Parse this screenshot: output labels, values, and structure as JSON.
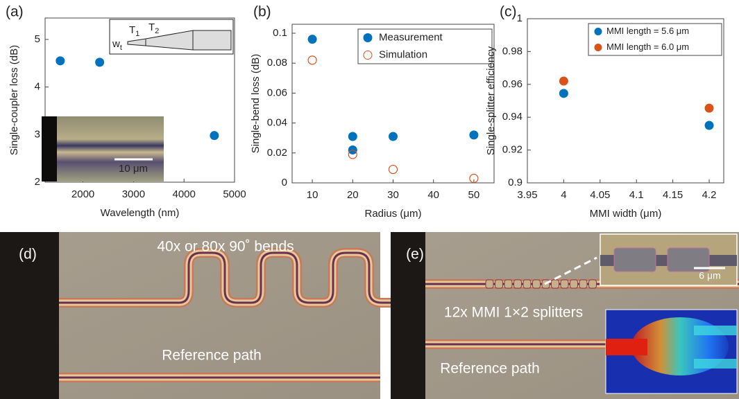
{
  "chart_data": [
    {
      "type": "scatter",
      "label": "(a)",
      "xlabel": "Wavelength (nm)",
      "ylabel": "Single-coupler loss (dB)",
      "xlim": [
        1250,
        5000
      ],
      "ylim": [
        2,
        5.45
      ],
      "xticks": [
        2000,
        3000,
        4000,
        5000
      ],
      "yticks": [
        2,
        3,
        4,
        5
      ],
      "series": [
        {
          "color": "#0072bd",
          "marker": "filled",
          "x": [
            1550,
            2330,
            4600
          ],
          "values": [
            4.55,
            4.52,
            2.98
          ]
        }
      ],
      "inset_labels": [
        {
          "text": "w",
          "sub": "t"
        },
        {
          "text": "T",
          "sub": "1"
        },
        {
          "text": "T",
          "sub": "2"
        }
      ],
      "scale_bar": "10 μm"
    },
    {
      "type": "scatter",
      "label": "(b)",
      "xlabel": "Radius (μm)",
      "ylabel": "Single-bend loss (dB)",
      "xlim": [
        5,
        55
      ],
      "ylim": [
        0,
        0.106
      ],
      "xticks": [
        10,
        20,
        30,
        40,
        50
      ],
      "yticks": [
        0,
        0.02,
        0.04,
        0.06,
        0.08,
        0.1
      ],
      "legend": "top-right",
      "series": [
        {
          "name": "Measurement",
          "color": "#0072bd",
          "marker": "filled",
          "x": [
            10,
            20,
            20,
            30,
            50
          ],
          "values": [
            0.096,
            0.031,
            0.022,
            0.031,
            0.032
          ]
        },
        {
          "name": "Simulation",
          "color": "#d95319",
          "marker": "open",
          "x": [
            10,
            20,
            30,
            50
          ],
          "values": [
            0.082,
            0.019,
            0.009,
            0.003
          ]
        }
      ]
    },
    {
      "type": "scatter",
      "label": "(c)",
      "xlabel": "MMI width (μm)",
      "ylabel": "Single-splitter efficiency",
      "xlim": [
        3.95,
        4.22
      ],
      "ylim": [
        0.9,
        1
      ],
      "xticks": [
        3.95,
        4,
        4.05,
        4.1,
        4.15,
        4.2
      ],
      "yticks": [
        0.9,
        0.92,
        0.94,
        0.96,
        0.98,
        1
      ],
      "legend": "top-right",
      "series": [
        {
          "name": "MMI length = 5.6 μm",
          "color": "#0072bd",
          "marker": "filled",
          "x": [
            4,
            4.2
          ],
          "values": [
            0.9545,
            0.935
          ]
        },
        {
          "name": "MMI length = 6.0 μm",
          "color": "#d95319",
          "marker": "filled",
          "x": [
            4,
            4.2
          ],
          "values": [
            0.962,
            0.9455
          ]
        }
      ]
    }
  ],
  "micrographs": [
    {
      "label": "(d)",
      "texts": [
        "40x or 80x 90˚ bends",
        "Reference path"
      ]
    },
    {
      "label": "(e)",
      "texts": [
        "12x MMI 1×2 splitters",
        "Reference path"
      ],
      "scale_bar": "6 μm"
    }
  ]
}
